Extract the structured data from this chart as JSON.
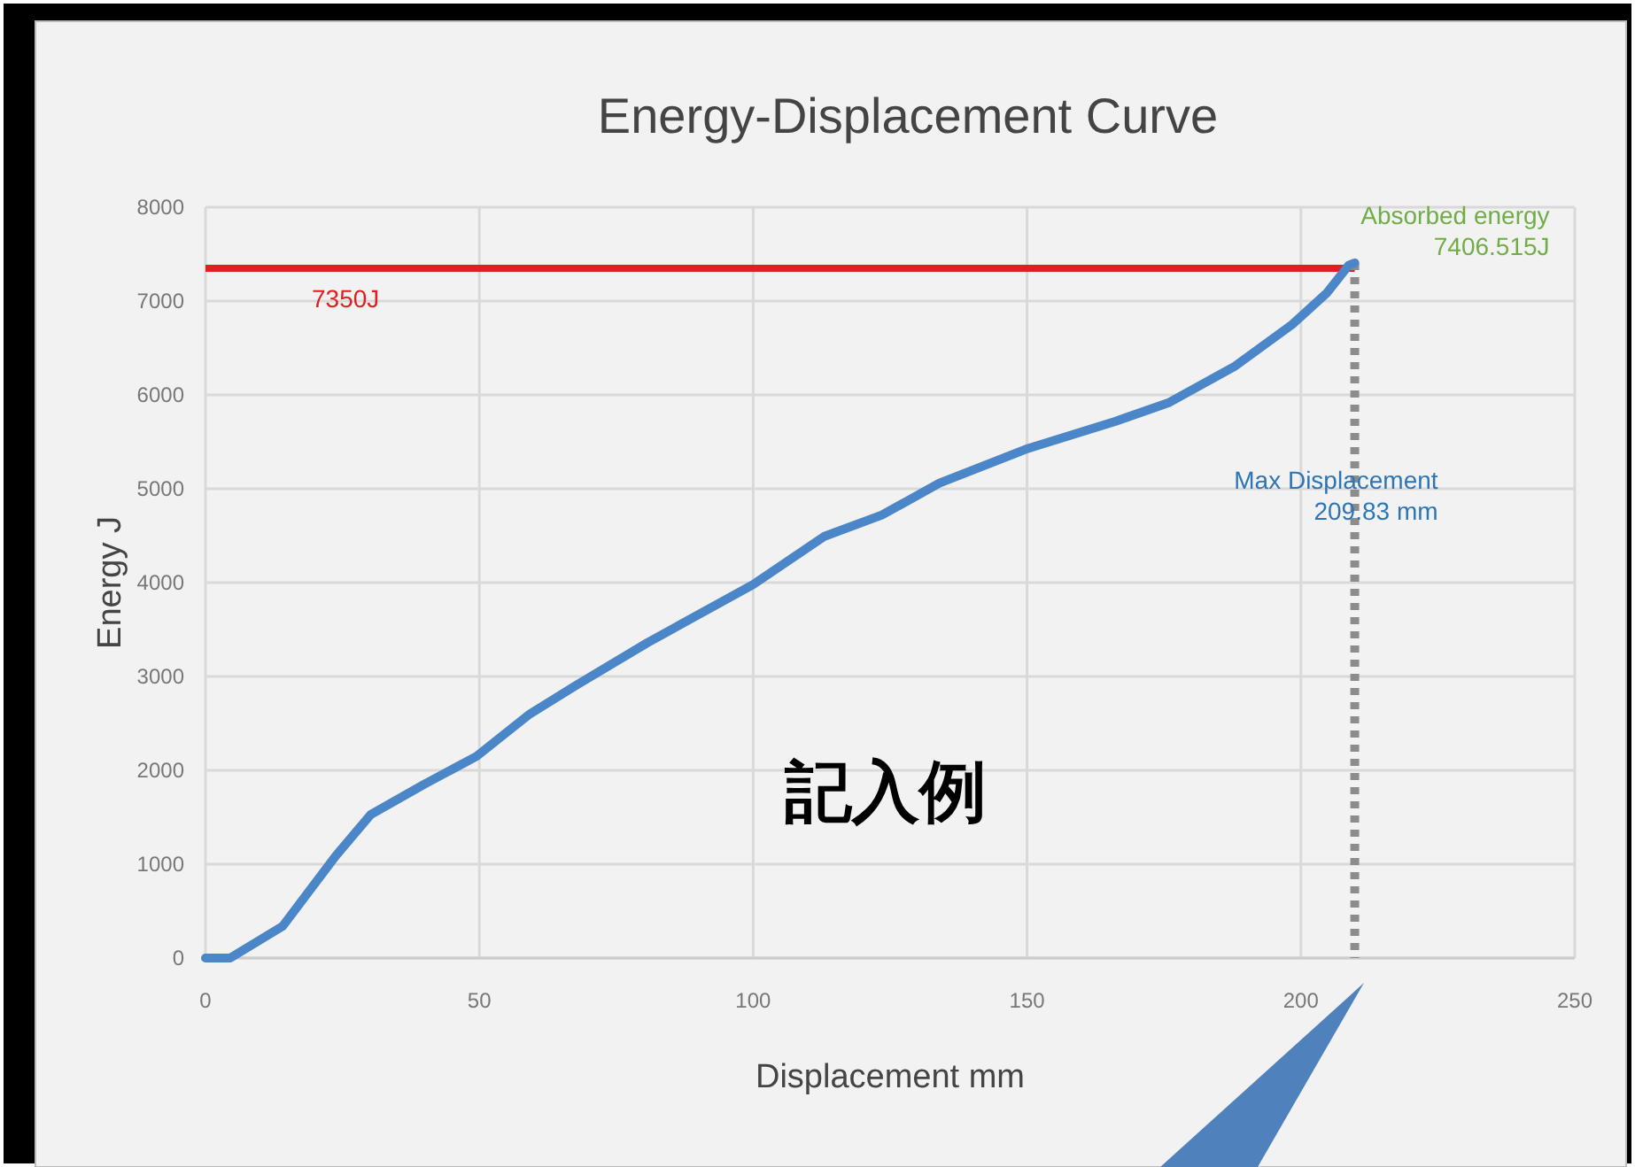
{
  "chart_data": {
    "type": "line",
    "title": "Energy-Displacement Curve",
    "xlabel": "Displacement  mm",
    "ylabel": "Energy  J",
    "xlim": [
      0,
      250
    ],
    "xticks": [
      0,
      50,
      100,
      150,
      200,
      250
    ],
    "ylim": [
      0,
      8000
    ],
    "yticks": [
      0,
      1000,
      2000,
      3000,
      4000,
      5000,
      6000,
      7000,
      8000
    ],
    "grid": true,
    "marker": "none",
    "line_style": "solid",
    "series": [
      {
        "color": "#4a86c8",
        "x": [
          0,
          4.5,
          14.1,
          23.8,
          30.2,
          39.9,
          49.5,
          59.2,
          67.8,
          80.7,
          100,
          112.9,
          123.5,
          134,
          150.2,
          166.2,
          176,
          187.8,
          198.4,
          204.8,
          208.7,
          209.83
        ],
        "values": [
          0,
          0,
          340,
          1090,
          1530,
          1850,
          2150,
          2600,
          2910,
          3360,
          3980,
          4490,
          4720,
          5060,
          5430,
          5720,
          5920,
          6300,
          6750,
          7090,
          7380,
          7406.515
        ]
      }
    ],
    "ref_lines": [
      {
        "axis": "y",
        "value": 7350,
        "label": "7350J",
        "color": "#e02020",
        "line_style": "solid"
      },
      {
        "axis": "x",
        "value": 209.83,
        "label": "Max Displacement\n209.83 mm",
        "color": "#8c8c8c",
        "line_style": "dotted"
      }
    ],
    "annotations": [
      {
        "text": "Absorbed energy\n7406.515J",
        "x": 209.83,
        "y": 7406.515
      },
      "記入例"
    ]
  }
}
